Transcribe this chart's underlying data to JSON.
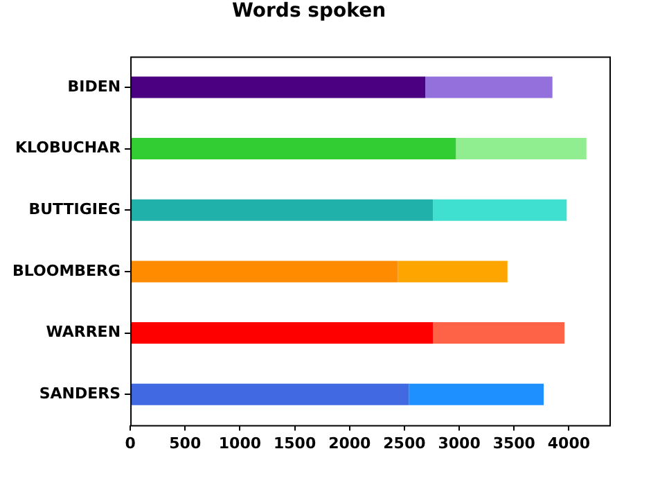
{
  "chart_data": {
    "type": "bar",
    "title": "Words spoken",
    "orientation": "horizontal",
    "stacked": true,
    "categories": [
      "BIDEN",
      "KLOBUCHAR",
      "BUTTIGIEG",
      "BLOOMBERG",
      "WARREN",
      "SANDERS"
    ],
    "series": [
      {
        "colors": [
          "#4b0082",
          "#32cd32",
          "#20b2aa",
          "#ff8c00",
          "#ff0000",
          "#4169e1"
        ],
        "values": [
          2690,
          2970,
          2760,
          2440,
          2760,
          2540
        ]
      },
      {
        "colors": [
          "#9370db",
          "#90ee90",
          "#40e0d0",
          "#ffa500",
          "#ff6347",
          "#1e90ff"
        ],
        "values": [
          1160,
          1190,
          1220,
          1000,
          1200,
          1230
        ]
      }
    ],
    "xlim": [
      0,
      4370
    ],
    "xticks": [
      0,
      500,
      1000,
      1500,
      2000,
      2500,
      3000,
      3500,
      4000
    ],
    "legend": false
  }
}
